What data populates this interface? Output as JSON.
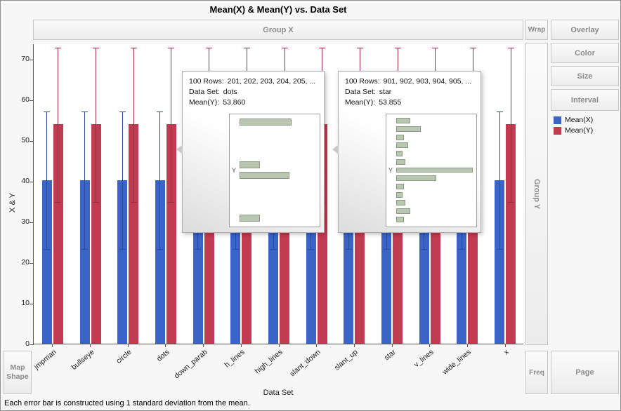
{
  "title": "Mean(X) & Mean(Y) vs. Data Set",
  "zones": {
    "group_x": "Group X",
    "wrap": "Wrap",
    "group_y": "Group Y",
    "freq": "Freq",
    "map_shape": "Map Shape"
  },
  "buttons": {
    "overlay": "Overlay",
    "color": "Color",
    "size": "Size",
    "interval": "Interval",
    "page": "Page"
  },
  "legend": [
    {
      "label": "Mean(X)",
      "color": "#3a64c8"
    },
    {
      "label": "Mean(Y)",
      "color": "#c23c51"
    }
  ],
  "footnote": "Each error bar is constructed using 1 standard deviation from the mean.",
  "chart_data": {
    "type": "bar",
    "title": "Mean(X) & Mean(Y) vs. Data Set",
    "xlabel": "Data Set",
    "ylabel": "X & Y",
    "ylim": [
      0,
      73.8
    ],
    "yticks": [
      0,
      10,
      20,
      30,
      40,
      50,
      60,
      70
    ],
    "grid": false,
    "legend_position": "right",
    "error_bars": "1 standard deviation",
    "categories": [
      "jmpman",
      "bullseye",
      "circle",
      "dots",
      "down_parab",
      "h_lines",
      "high_lines",
      "slant_down",
      "slant_up",
      "star",
      "v_lines",
      "wide_lines",
      "x"
    ],
    "series": [
      {
        "name": "Mean(X)",
        "color": "#3a64c8",
        "error_color": "#2a4aa0",
        "values": [
          40.2,
          40.2,
          40.2,
          40.2,
          40.2,
          40.2,
          40.2,
          40.2,
          40.2,
          40.2,
          40.2,
          40.2,
          40.2
        ],
        "std": 16.9
      },
      {
        "name": "Mean(Y)",
        "color": "#c23c51",
        "error_color": "#992c42",
        "values": [
          53.9,
          53.9,
          53.9,
          53.9,
          53.9,
          53.9,
          53.9,
          53.9,
          53.9,
          53.9,
          53.9,
          53.9,
          53.9
        ],
        "std": 18.9
      }
    ]
  },
  "tooltips": [
    {
      "rows_label": "100 Rows:",
      "rows_value": "201, 202, 203, 204, 205, ...",
      "dataset_label": "Data Set:",
      "dataset_value": "dots",
      "mean_label": "Mean(Y):",
      "mean_value": "53.860",
      "thumb_axis": "Y",
      "histogram": [
        0.68,
        0,
        0,
        0,
        0.27,
        0.65,
        0,
        0,
        0,
        0.27
      ]
    },
    {
      "rows_label": "100 Rows:",
      "rows_value": "901, 902, 903, 904, 905, ...",
      "dataset_label": "Data Set:",
      "dataset_value": "star",
      "mean_label": "Mean(Y):",
      "mean_value": "53.855",
      "thumb_axis": "Y",
      "histogram": [
        0.18,
        0.32,
        0.1,
        0.16,
        0.08,
        0.12,
        1.0,
        0.52,
        0.1,
        0.08,
        0.12,
        0.18,
        0.1
      ]
    }
  ]
}
